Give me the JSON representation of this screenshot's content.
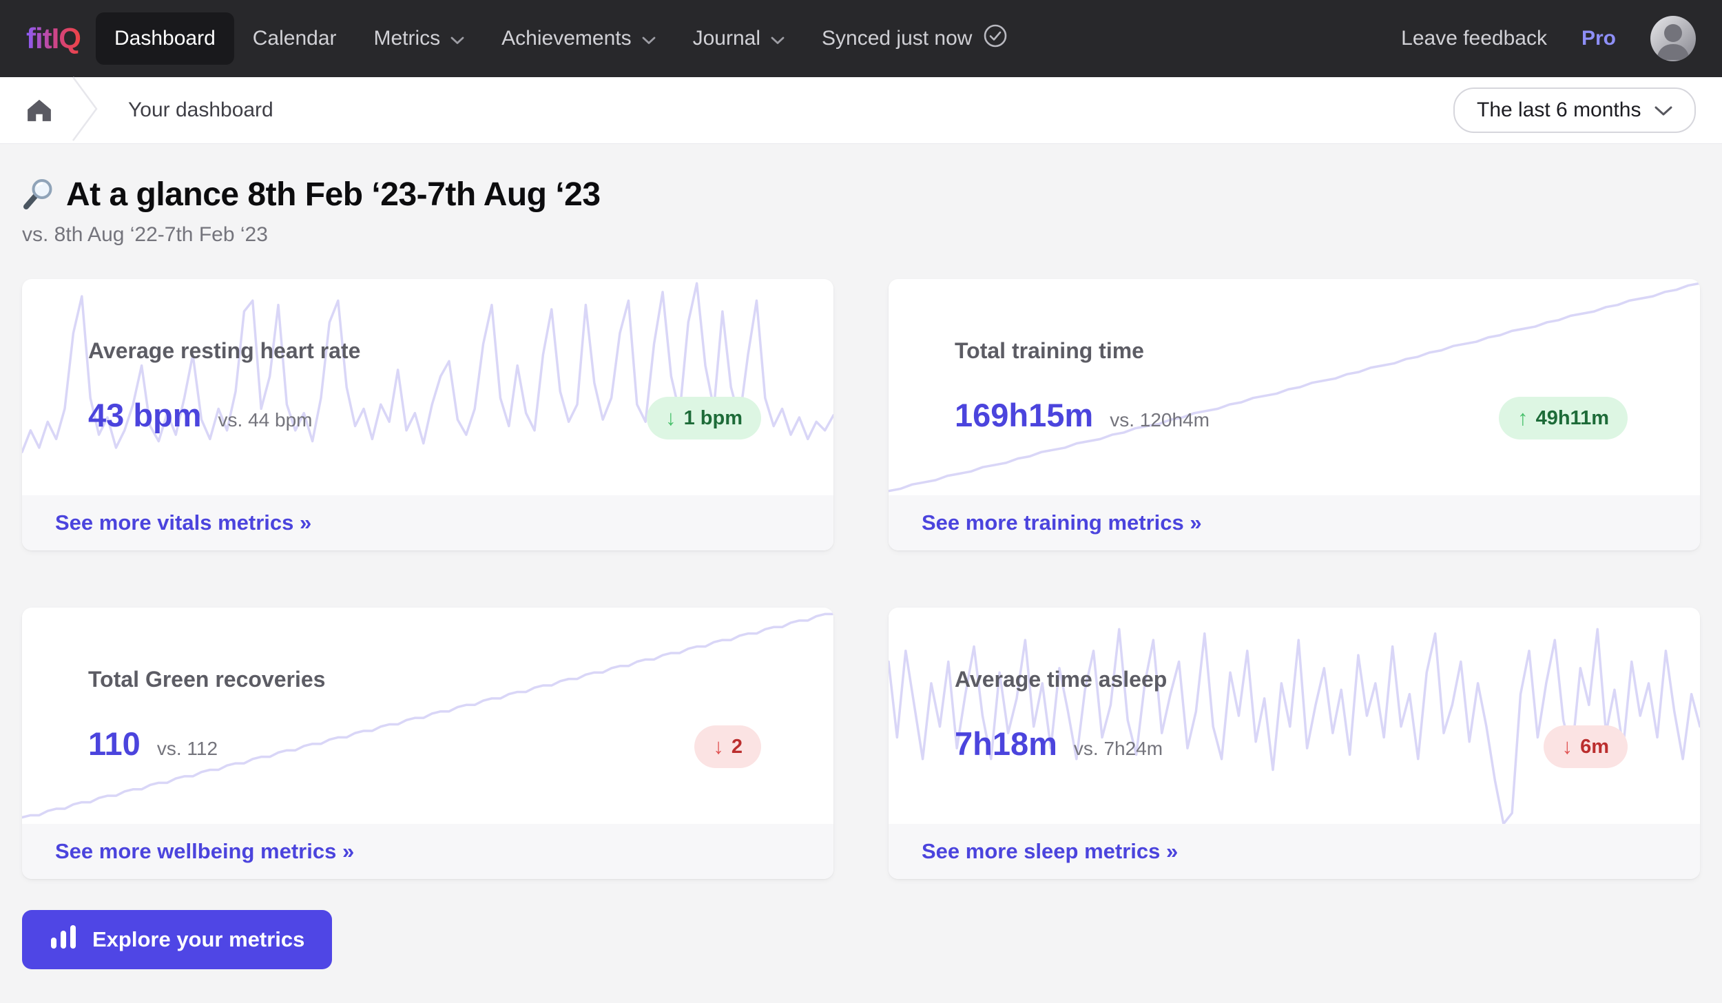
{
  "nav": {
    "logo": "fitIQ",
    "items": [
      {
        "label": "Dashboard",
        "active": true,
        "has_dropdown": false
      },
      {
        "label": "Calendar",
        "active": false,
        "has_dropdown": false
      },
      {
        "label": "Metrics",
        "active": false,
        "has_dropdown": true
      },
      {
        "label": "Achievements",
        "active": false,
        "has_dropdown": true
      },
      {
        "label": "Journal",
        "active": false,
        "has_dropdown": true
      }
    ],
    "sync_status": "Synced just now",
    "leave_feedback": "Leave feedback",
    "plan_badge": "Pro"
  },
  "breadcrumb": {
    "current": "Your dashboard"
  },
  "period_select": {
    "value": "The last 6 months"
  },
  "header": {
    "title": "At a glance 8th Feb ‘23-7th Aug ‘23",
    "comparison": "vs. 8th Aug ‘22-7th Feb ‘23"
  },
  "cards": [
    {
      "title": "Average resting heart rate",
      "value": "43 bpm",
      "comparison": "vs. 44 bpm",
      "delta": "1 bpm",
      "arrow_glyph": "↓",
      "delta_direction": "down",
      "delta_sentiment": "positive",
      "link": "See more vitals metrics »"
    },
    {
      "title": "Total training time",
      "value": "169h15m",
      "comparison": "vs. 120h4m",
      "delta": "49h11m",
      "arrow_glyph": "↑",
      "delta_direction": "up",
      "delta_sentiment": "positive",
      "link": "See more training metrics »"
    },
    {
      "title": "Total Green recoveries",
      "value": "110",
      "comparison": "vs. 112",
      "delta": "2",
      "arrow_glyph": "↓",
      "delta_direction": "down",
      "delta_sentiment": "negative",
      "link": "See more wellbeing metrics »"
    },
    {
      "title": "Average time asleep",
      "value": "7h18m",
      "comparison": "vs. 7h24m",
      "delta": "6m",
      "arrow_glyph": "↓",
      "delta_direction": "down",
      "delta_sentiment": "negative",
      "link": "See more sleep metrics »"
    }
  ],
  "explore_button": {
    "label": "Explore your metrics"
  },
  "chart_data": [
    {
      "type": "line",
      "title": "Average resting heart rate sparkline",
      "note": "decorative background sparkline, no axes; values are relative height 0-100 (higher = taller peak)",
      "values": [
        20,
        30,
        22,
        34,
        26,
        40,
        75,
        92,
        45,
        28,
        36,
        22,
        30,
        42,
        60,
        32,
        25,
        38,
        28,
        45,
        65,
        35,
        26,
        40,
        30,
        48,
        85,
        90,
        40,
        55,
        88,
        42,
        30,
        38,
        25,
        45,
        80,
        90,
        50,
        32,
        40,
        26,
        42,
        34,
        58,
        30,
        38,
        24,
        42,
        55,
        62,
        35,
        28,
        40,
        70,
        88,
        45,
        32,
        60,
        38,
        30,
        65,
        86,
        48,
        34,
        42,
        88,
        52,
        35,
        45,
        75,
        90,
        42,
        34,
        70,
        94,
        55,
        38,
        80,
        98,
        60,
        40,
        85,
        50,
        35,
        65,
        90,
        45,
        32,
        40,
        28,
        36,
        26,
        34,
        30,
        37
      ]
    },
    {
      "type": "line",
      "title": "Total training time sparkline (cumulative)",
      "note": "decorative background sparkline, steadily rising left to right",
      "values": [
        2,
        3,
        5,
        6,
        7,
        9,
        10,
        11,
        13,
        14,
        15,
        17,
        18,
        20,
        21,
        22,
        24,
        25,
        26,
        28,
        29,
        31,
        32,
        33,
        35,
        36,
        38,
        39,
        40,
        42,
        43,
        45,
        46,
        47,
        49,
        50,
        52,
        53,
        54,
        56,
        57,
        59,
        60,
        61,
        63,
        64,
        66,
        67,
        69,
        70,
        71,
        73,
        74,
        76,
        77,
        78,
        80,
        81,
        83,
        84,
        85,
        87,
        88,
        90,
        91,
        92,
        94,
        95,
        97,
        98
      ]
    },
    {
      "type": "line",
      "title": "Total Green recoveries sparkline (cumulative)",
      "note": "decorative background sparkline, stepped rise left to right",
      "values": [
        3,
        4,
        4,
        6,
        7,
        7,
        9,
        10,
        10,
        12,
        13,
        13,
        15,
        16,
        16,
        18,
        19,
        19,
        21,
        22,
        22,
        24,
        25,
        25,
        27,
        28,
        28,
        30,
        31,
        31,
        33,
        34,
        34,
        36,
        37,
        37,
        39,
        40,
        40,
        42,
        43,
        43,
        45,
        46,
        46,
        48,
        49,
        49,
        51,
        52,
        52,
        54,
        55,
        55,
        57,
        58,
        58,
        60,
        61,
        61,
        63,
        64,
        64,
        66,
        67,
        67,
        69,
        70,
        70,
        72,
        73,
        73,
        75,
        76,
        76,
        78,
        79,
        79,
        81,
        82,
        82,
        84,
        85,
        85,
        87,
        88,
        88,
        90,
        91,
        91,
        93,
        94,
        94,
        96,
        97,
        97
      ]
    },
    {
      "type": "line",
      "title": "Average time asleep sparkline",
      "note": "decorative background sparkline, noisy with one deep dip near 75% width",
      "values": [
        75,
        40,
        80,
        55,
        30,
        65,
        45,
        75,
        35,
        60,
        82,
        50,
        30,
        70,
        42,
        58,
        85,
        45,
        65,
        35,
        72,
        52,
        30,
        62,
        80,
        40,
        55,
        90,
        48,
        32,
        65,
        85,
        42,
        60,
        75,
        35,
        52,
        88,
        45,
        30,
        70,
        50,
        80,
        38,
        58,
        25,
        65,
        45,
        85,
        35,
        55,
        72,
        42,
        62,
        32,
        78,
        50,
        65,
        40,
        82,
        45,
        60,
        30,
        70,
        88,
        42,
        55,
        75,
        38,
        65,
        45,
        20,
        0,
        5,
        60,
        80,
        40,
        65,
        85,
        48,
        32,
        72,
        55,
        90,
        42,
        62,
        35,
        75,
        50,
        65,
        40,
        80,
        52,
        30,
        60,
        45
      ]
    }
  ],
  "colors": {
    "accent_indigo": "#4b44dd",
    "button_indigo": "#4f46e5",
    "positive_bg": "#ddf6e3",
    "positive_text": "#1d6b38",
    "positive_arrow": "#47c06b",
    "negative_bg": "#fbe3e3",
    "negative_text": "#bb2e2e",
    "negative_arrow": "#e05252",
    "sparkline": "#d9d6f7",
    "sparkline_glow": "#ffffff",
    "nav_bg": "#28282b",
    "page_bg": "#f4f4f5",
    "pro_text": "#8e8ff7",
    "logo_gradient": [
      "#8b5cf6",
      "#ef4444"
    ]
  },
  "icons": {
    "magnifier": "🔍",
    "home": "house glyph",
    "check_circle": "✓ in circle",
    "chevron_down": "⌄",
    "breadcrumb_chevron": "›",
    "bar_chart": "▂▄▆"
  }
}
